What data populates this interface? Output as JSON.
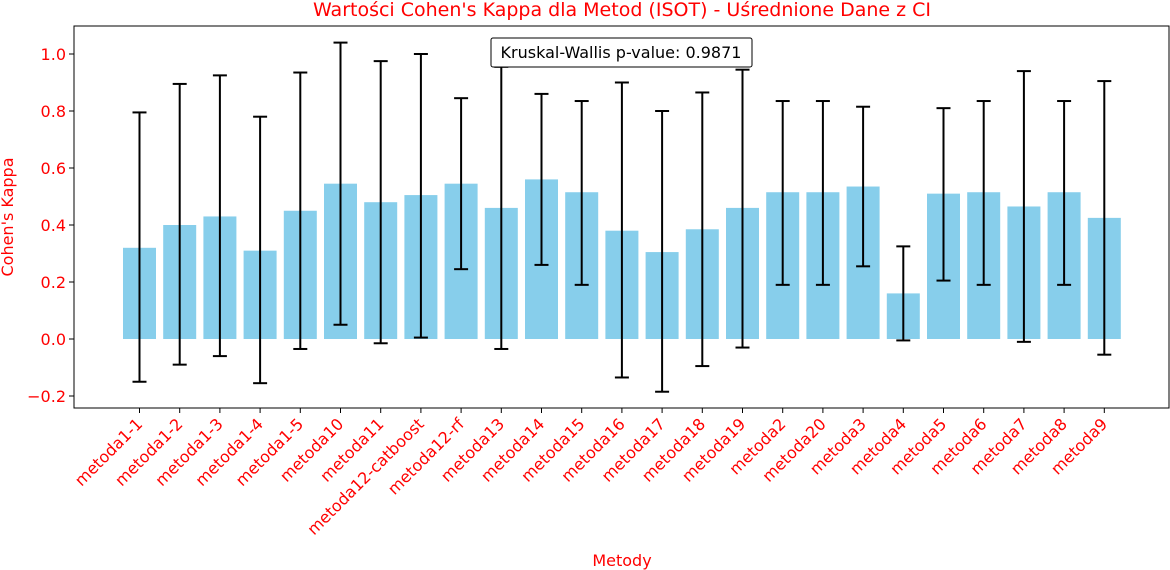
{
  "chart_data": {
    "type": "bar",
    "title": "Wartości Cohen's Kappa dla Metod (ISOT) - Uśrednione Dane z CI",
    "xlabel": "Metody",
    "ylabel": "Cohen's Kappa",
    "ylim": [
      -0.24,
      1.1
    ],
    "yticks": [
      -0.2,
      0.0,
      0.2,
      0.4,
      0.6,
      0.8,
      1.0
    ],
    "ytick_labels": [
      "−0.2",
      "0.0",
      "0.2",
      "0.4",
      "0.6",
      "0.8",
      "1.0"
    ],
    "grid": false,
    "bar_color": "#87ceeb",
    "error_bar_color": "#000000",
    "text_color": "#ff0000",
    "annotation": "Kruskal-Wallis p-value: 0.9871",
    "categories": [
      "metoda1-1",
      "metoda1-2",
      "metoda1-3",
      "metoda1-4",
      "metoda1-5",
      "metoda10",
      "metoda11",
      "metoda12-catboost",
      "metoda12-rf",
      "metoda13",
      "metoda14",
      "metoda15",
      "metoda16",
      "metoda17",
      "metoda18",
      "metoda19",
      "metoda2",
      "metoda20",
      "metoda3",
      "metoda4",
      "metoda5",
      "metoda6",
      "metoda7",
      "metoda8",
      "metoda9"
    ],
    "values": [
      0.32,
      0.4,
      0.43,
      0.31,
      0.45,
      0.545,
      0.48,
      0.505,
      0.545,
      0.46,
      0.56,
      0.515,
      0.38,
      0.305,
      0.385,
      0.46,
      0.515,
      0.515,
      0.535,
      0.16,
      0.51,
      0.515,
      0.465,
      0.515,
      0.425
    ],
    "ci_lower": [
      -0.15,
      -0.09,
      -0.06,
      -0.155,
      -0.035,
      0.05,
      -0.015,
      0.005,
      0.245,
      -0.035,
      0.26,
      0.19,
      -0.135,
      -0.185,
      -0.095,
      -0.03,
      0.19,
      0.19,
      0.255,
      -0.005,
      0.205,
      0.19,
      -0.01,
      0.19,
      -0.055
    ],
    "ci_upper": [
      0.795,
      0.895,
      0.925,
      0.78,
      0.935,
      1.04,
      0.975,
      1.0,
      0.845,
      0.955,
      0.86,
      0.835,
      0.9,
      0.8,
      0.865,
      0.945,
      0.835,
      0.835,
      0.815,
      0.325,
      0.81,
      0.835,
      0.94,
      0.835,
      0.905
    ]
  }
}
